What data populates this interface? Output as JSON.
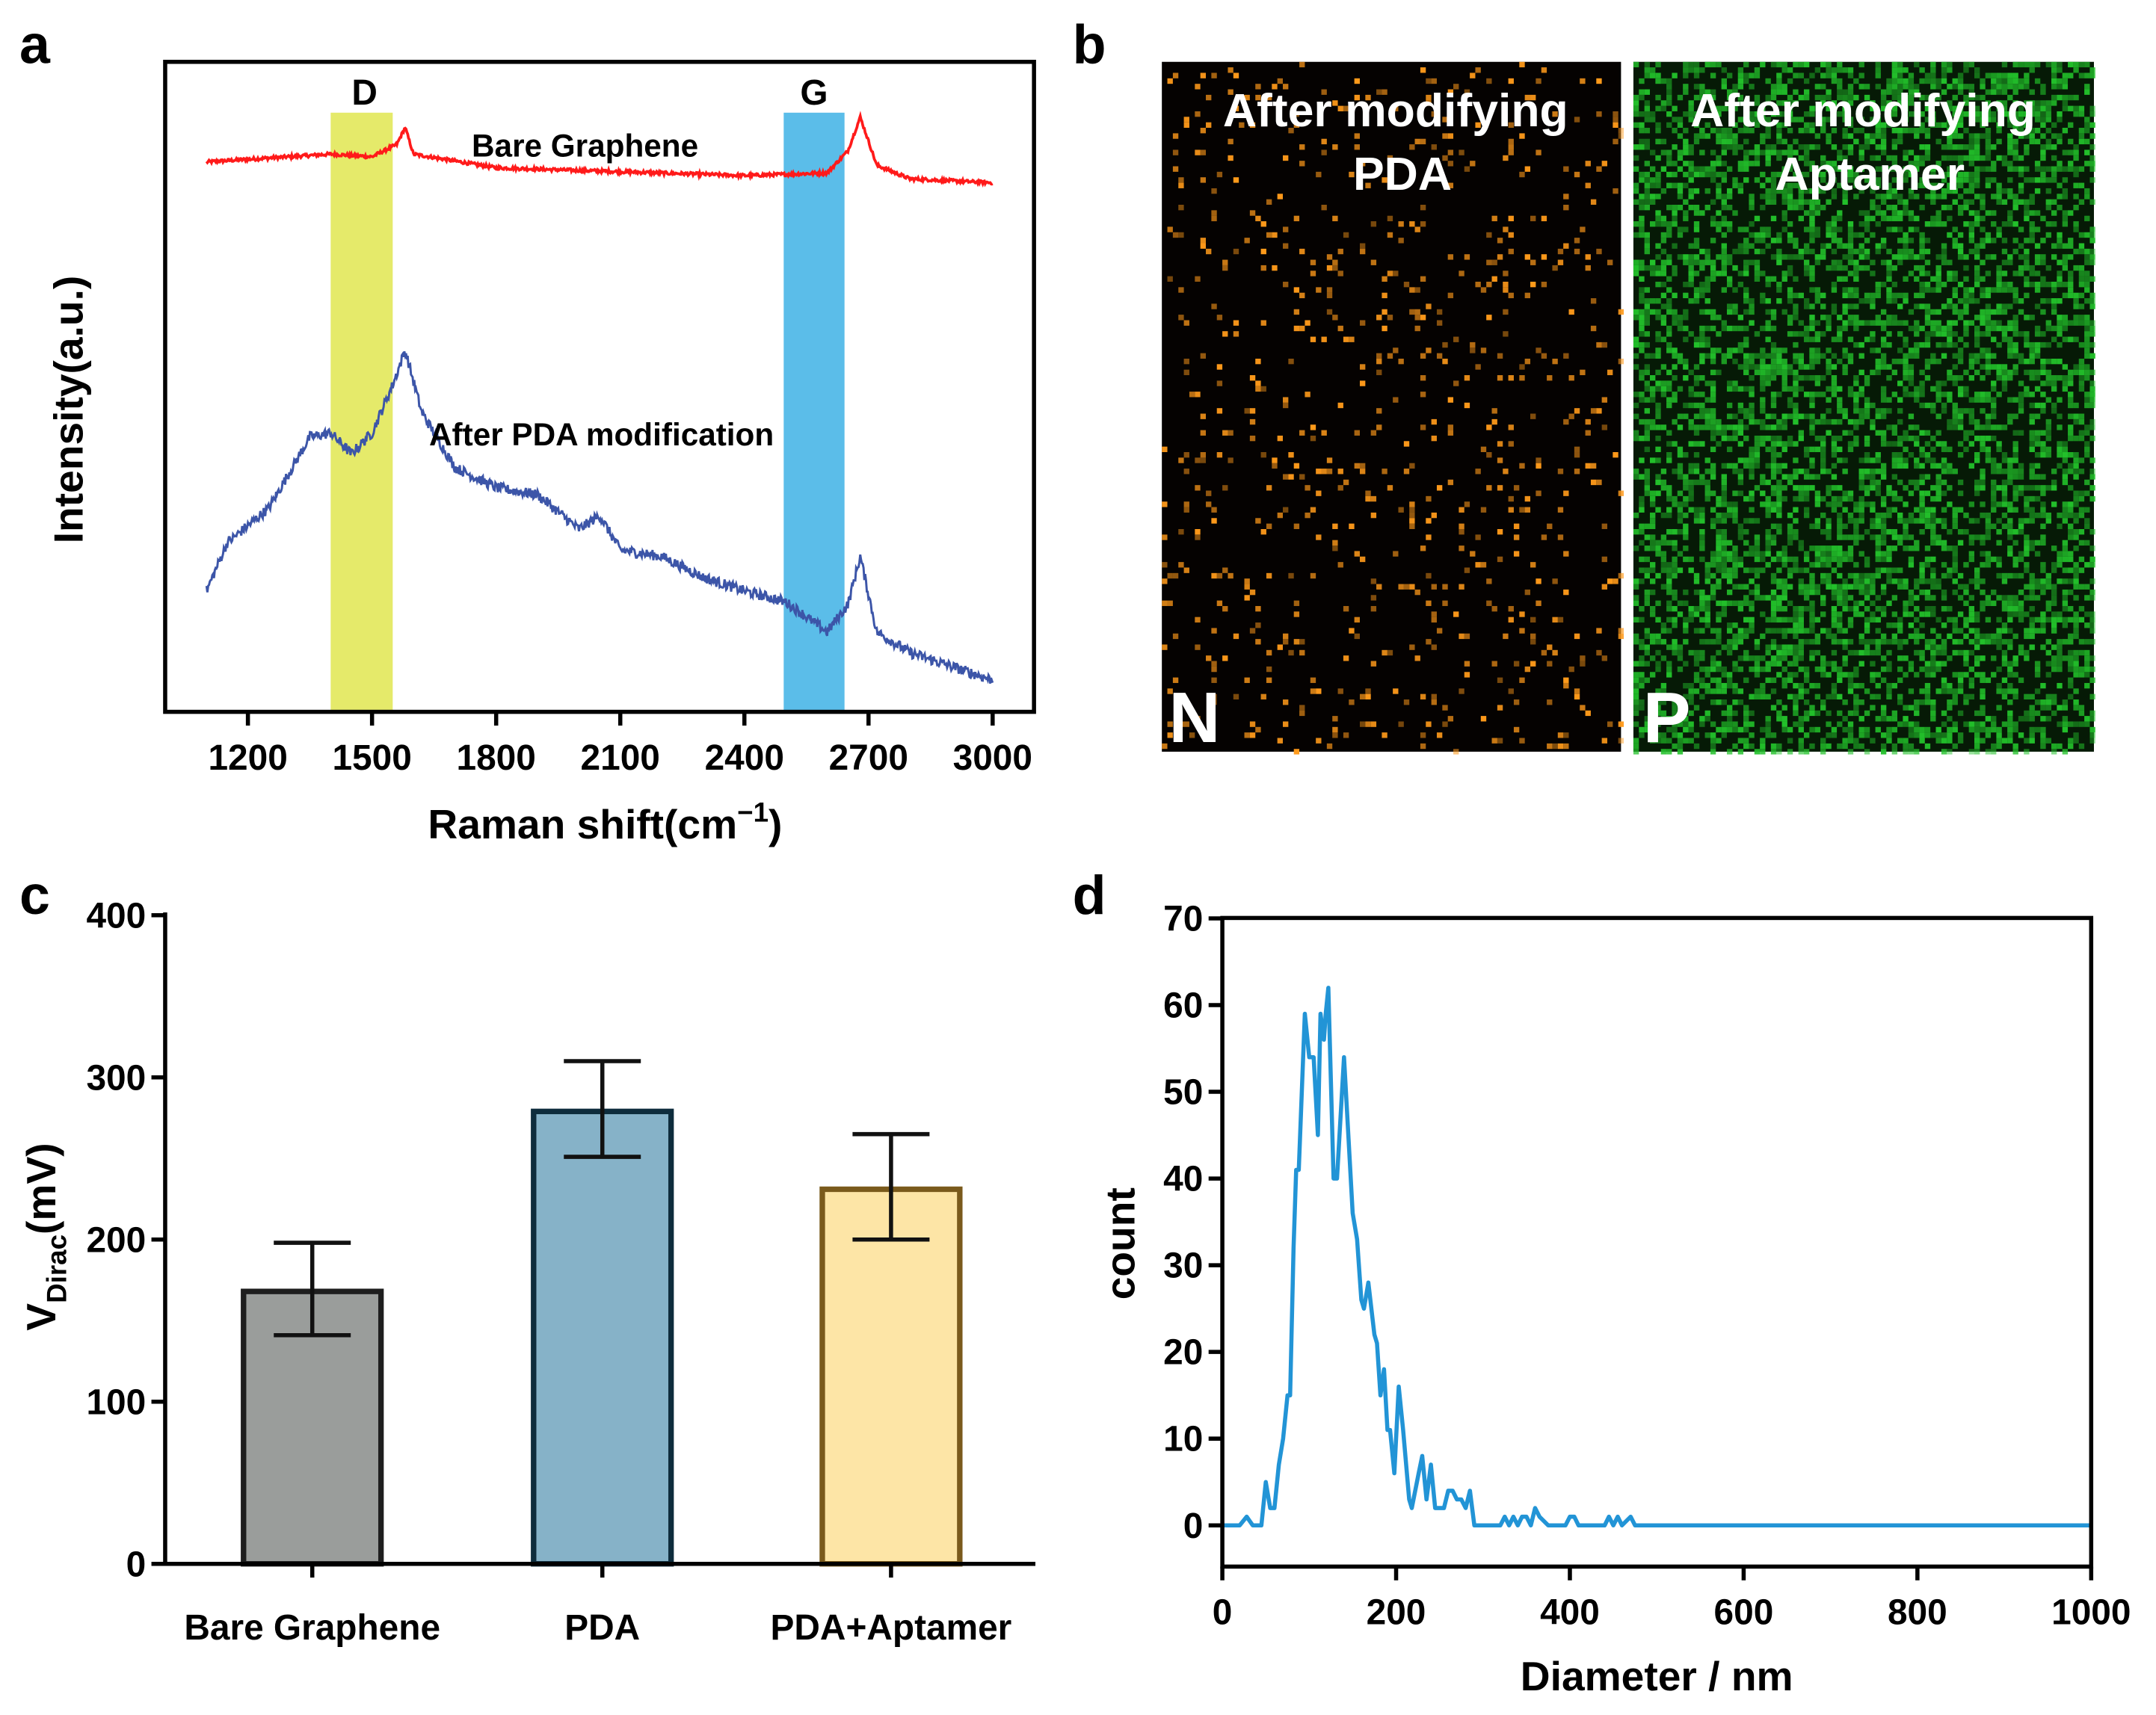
{
  "panel_labels": [
    "a",
    "b",
    "c",
    "d"
  ],
  "chart_data": [
    {
      "type": "line",
      "panel": "a",
      "xlabel": "Raman shift(cm",
      "xlabel_sup": "−1",
      "xlabel_end": ")",
      "ylabel": "Intensity(a.u.)",
      "xlim": [
        1000,
        3100
      ],
      "ylim": [
        0,
        100
      ],
      "xticks": [
        1200,
        1500,
        1800,
        2100,
        2400,
        2700,
        3000
      ],
      "bands": [
        {
          "label": "D",
          "range": [
            1400,
            1550
          ],
          "color": "#e5ea6a"
        },
        {
          "label": "G",
          "range": [
            2495,
            2642
          ],
          "color": "#5bbde9"
        }
      ],
      "series": [
        {
          "name": "Bare Graphene",
          "color": "#ff1a1a",
          "points": [
            [
              1100,
              84.6
            ],
            [
              1400,
              85.8
            ],
            [
              1500,
              85.4
            ],
            [
              1560,
              87.3
            ],
            [
              1580,
              89.9
            ],
            [
              1600,
              85.8
            ],
            [
              1800,
              83.7
            ],
            [
              2100,
              83.1
            ],
            [
              2400,
              82.5
            ],
            [
              2600,
              82.9
            ],
            [
              2650,
              86.3
            ],
            [
              2680,
              91.5
            ],
            [
              2720,
              84.1
            ],
            [
              2800,
              82
            ],
            [
              3000,
              81.4
            ]
          ]
        },
        {
          "name": "After PDA modification",
          "color": "#3c55a8",
          "points": [
            [
              1100,
              18.6
            ],
            [
              1150,
              26
            ],
            [
              1250,
              31.3
            ],
            [
              1350,
              42.3
            ],
            [
              1400,
              42.9
            ],
            [
              1450,
              39.7
            ],
            [
              1500,
              42.9
            ],
            [
              1550,
              50.3
            ],
            [
              1580,
              55.6
            ],
            [
              1620,
              46.1
            ],
            [
              1700,
              37.6
            ],
            [
              1800,
              34.5
            ],
            [
              1900,
              33.4
            ],
            [
              2000,
              28.1
            ],
            [
              2050,
              30.2
            ],
            [
              2100,
              24.9
            ],
            [
              2200,
              23.9
            ],
            [
              2300,
              20.7
            ],
            [
              2400,
              18.6
            ],
            [
              2500,
              16.9
            ],
            [
              2600,
              12.3
            ],
            [
              2650,
              16.5
            ],
            [
              2680,
              23.9
            ],
            [
              2720,
              12.3
            ],
            [
              2800,
              9.1
            ],
            [
              2900,
              7
            ],
            [
              3000,
              4.9
            ]
          ]
        }
      ]
    },
    {
      "type": "heatmap",
      "panel": "b",
      "maps": [
        {
          "title_line1": "After modifying",
          "title_line2": "PDA",
          "element": "N",
          "color": "#ff9a1a",
          "density": 0.06
        },
        {
          "title_line1": "After modifying",
          "title_line2": "Aptamer",
          "element": "P",
          "color": "#22c02a",
          "density": 0.45
        }
      ]
    },
    {
      "type": "bar",
      "panel": "c",
      "ylabel": "V",
      "ylabel_sub": "Dirac",
      "ylabel_end": "(mV)",
      "ylim": [
        0,
        400
      ],
      "yticks": [
        0,
        100,
        200,
        300,
        400
      ],
      "categories": [
        "Bare Graphene",
        "PDA",
        "PDA+Aptamer"
      ],
      "values": [
        168,
        279,
        231
      ],
      "err_low": [
        141,
        251,
        200
      ],
      "err_high": [
        198,
        310,
        265
      ],
      "fill_colors": [
        "#9a9d9b",
        "#86b2c8",
        "#fde5a6"
      ],
      "edge_colors": [
        "#1e1e1e",
        "#0e2c3c",
        "#7a5a1c"
      ]
    },
    {
      "type": "line",
      "panel": "d",
      "xlabel": "Diameter / nm",
      "ylabel": "count",
      "xlim": [
        0,
        1000
      ],
      "ylim": [
        -5,
        70
      ],
      "xticks": [
        0,
        200,
        400,
        600,
        800,
        1000
      ],
      "yticks": [
        0,
        10,
        20,
        30,
        40,
        50,
        60,
        70
      ],
      "color": "#2294d6",
      "points": [
        [
          0,
          0
        ],
        [
          20,
          0
        ],
        [
          28,
          1
        ],
        [
          35,
          0
        ],
        [
          45,
          0
        ],
        [
          50,
          5
        ],
        [
          55,
          2
        ],
        [
          60,
          2
        ],
        [
          65,
          7
        ],
        [
          70,
          10
        ],
        [
          75,
          15
        ],
        [
          78,
          15
        ],
        [
          82,
          32
        ],
        [
          85,
          41
        ],
        [
          88,
          41
        ],
        [
          95,
          59
        ],
        [
          100,
          54
        ],
        [
          105,
          54
        ],
        [
          110,
          45
        ],
        [
          113,
          59
        ],
        [
          117,
          56
        ],
        [
          119,
          59
        ],
        [
          122,
          62
        ],
        [
          128,
          40
        ],
        [
          132,
          40
        ],
        [
          140,
          54
        ],
        [
          150,
          36
        ],
        [
          155,
          33
        ],
        [
          160,
          26
        ],
        [
          163,
          25
        ],
        [
          168,
          28
        ],
        [
          175,
          22
        ],
        [
          178,
          21
        ],
        [
          182,
          15
        ],
        [
          186,
          18
        ],
        [
          190,
          11
        ],
        [
          193,
          11
        ],
        [
          198,
          6
        ],
        [
          203,
          16
        ],
        [
          208,
          11
        ],
        [
          215,
          3
        ],
        [
          218,
          2
        ],
        [
          226,
          6
        ],
        [
          230,
          8
        ],
        [
          235,
          3
        ],
        [
          240,
          7
        ],
        [
          245,
          2
        ],
        [
          250,
          2
        ],
        [
          255,
          2
        ],
        [
          260,
          4
        ],
        [
          265,
          4
        ],
        [
          270,
          3
        ],
        [
          275,
          3
        ],
        [
          280,
          2
        ],
        [
          285,
          4
        ],
        [
          290,
          0
        ],
        [
          320,
          0
        ],
        [
          325,
          1
        ],
        [
          330,
          0
        ],
        [
          335,
          1
        ],
        [
          340,
          0
        ],
        [
          345,
          1
        ],
        [
          350,
          1
        ],
        [
          355,
          0
        ],
        [
          360,
          2
        ],
        [
          365,
          1
        ],
        [
          375,
          0
        ],
        [
          395,
          0
        ],
        [
          400,
          1
        ],
        [
          405,
          1
        ],
        [
          410,
          0
        ],
        [
          440,
          0
        ],
        [
          445,
          1
        ],
        [
          450,
          0
        ],
        [
          455,
          1
        ],
        [
          460,
          0
        ],
        [
          470,
          1
        ],
        [
          475,
          0
        ],
        [
          1000,
          0
        ]
      ]
    }
  ]
}
